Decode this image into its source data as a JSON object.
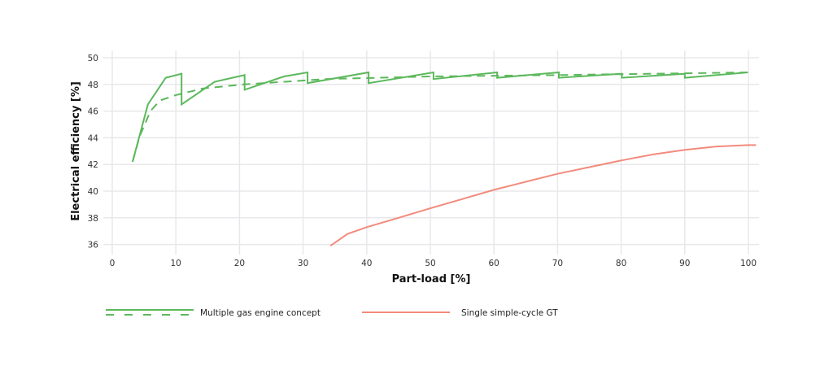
{
  "chart_data": {
    "type": "line",
    "title": "",
    "xlabel": "Part-load [%]",
    "ylabel": "Electrical efficiency [%]",
    "xlim": [
      -1.4,
      101.8
    ],
    "ylim": [
      35.3,
      50.5
    ],
    "x_ticks": [
      0,
      10,
      20,
      30,
      40,
      50,
      60,
      70,
      80,
      90,
      100
    ],
    "y_ticks": [
      36,
      38,
      40,
      42,
      44,
      46,
      48,
      50
    ],
    "grid": true,
    "legend_position": "bottom",
    "series": [
      {
        "name": "Multiple gas engine concept",
        "style": "solid",
        "color": "#5cb85c",
        "x": [
          3.2,
          5.6,
          8.4,
          10.9,
          10.9,
          16.1,
          20.8,
          20.8,
          27.0,
          30.7,
          30.7,
          40.3,
          40.3,
          50.5,
          50.5,
          60.5,
          60.5,
          70.2,
          70.2,
          80.1,
          80.1,
          90.0,
          90.0,
          99.9
        ],
        "values": [
          42.2,
          46.5,
          48.5,
          48.8,
          46.5,
          48.2,
          48.7,
          47.6,
          48.6,
          48.9,
          48.1,
          48.9,
          48.1,
          48.9,
          48.4,
          48.9,
          48.5,
          48.9,
          48.5,
          48.8,
          48.5,
          48.8,
          48.5,
          48.9
        ]
      },
      {
        "name": "Multiple gas engine concept",
        "style": "dashed",
        "color": "#5cb85c",
        "x": [
          3.2,
          4.3,
          6.0,
          7.5,
          10.0,
          14.3,
          20.7,
          33.5,
          50.0,
          70.0,
          100.0
        ],
        "values": [
          42.2,
          44.1,
          46.0,
          46.8,
          47.2,
          47.7,
          48.0,
          48.4,
          48.6,
          48.7,
          48.9
        ]
      },
      {
        "name": "Single simple-cycle GT",
        "style": "solid",
        "color": "#f28b7d",
        "x": [
          34.3,
          37.0,
          40.0,
          45.0,
          49.9,
          55.0,
          60.0,
          65.0,
          70.0,
          75.0,
          80.0,
          85.0,
          90.0,
          95.0,
          100.0,
          101.2
        ],
        "values": [
          35.9,
          36.8,
          37.3,
          38.0,
          38.7,
          39.4,
          40.1,
          40.7,
          41.3,
          41.8,
          42.3,
          42.75,
          43.1,
          43.35,
          43.45,
          43.45
        ]
      }
    ]
  },
  "legend": {
    "items": [
      {
        "label": "Multiple gas engine concept",
        "color": "#5cb85c",
        "style": "solid+dashed"
      },
      {
        "label": "Single simple-cycle GT",
        "color": "#f28b7d",
        "style": "solid"
      }
    ]
  },
  "colors": {
    "grid": "#e8e8ec",
    "engine": "#5cb85c",
    "gt": "#f28b7d"
  }
}
